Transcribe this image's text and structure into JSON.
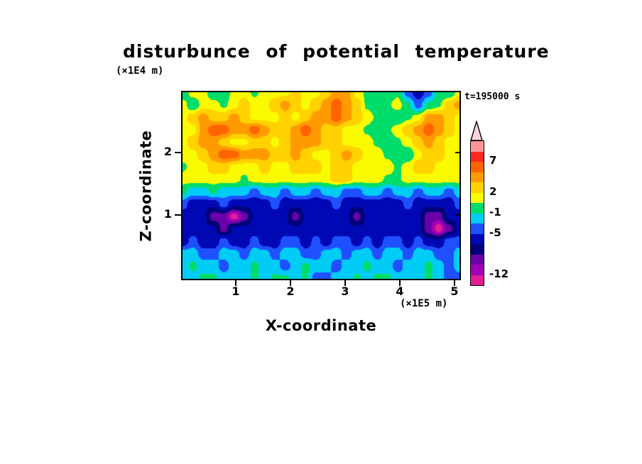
{
  "title": "disturbunce of potential temperature",
  "time_label": "t=195000 s",
  "axes": {
    "x_label": "X-coordinate",
    "x_unit": "(×1E5 m)",
    "x_ticks": [
      "1",
      "2",
      "3",
      "4",
      "5"
    ],
    "y_label": "Z-coordinate",
    "y_unit": "(×1E4 m)",
    "y_ticks": [
      "2",
      "1"
    ]
  },
  "colorbar": {
    "labels": [
      "7",
      "2",
      "-1",
      "-5",
      "-12"
    ],
    "arrow_color": "#ffd2dc",
    "outline_color": "#000000"
  },
  "chart_data": {
    "type": "heatmap",
    "title": "disturbunce of potential temperature",
    "xlabel": "X-coordinate (×1E5 m)",
    "ylabel": "Z-coordinate (×1E4 m)",
    "time": "t=195000 s",
    "x_range": [
      0,
      5.15
    ],
    "z_range": [
      0,
      3.0
    ],
    "x_tick_values": [
      1,
      2,
      3,
      4,
      5
    ],
    "z_tick_values": [
      2,
      1
    ],
    "legend_boundaries_labeled": [
      7,
      2,
      -1,
      -5,
      -12
    ],
    "grid_orientation": "rows listed top (z=3) to bottom (z=0)",
    "levels": [
      {
        "max": -12,
        "color": "#e11e96"
      },
      {
        "max": -10.5,
        "color": "#a000b4"
      },
      {
        "max": -9,
        "color": "#6a00a8"
      },
      {
        "max": -7,
        "color": "#000078"
      },
      {
        "max": -5,
        "color": "#0008b4"
      },
      {
        "max": -3,
        "color": "#1e50ff"
      },
      {
        "max": -1,
        "color": "#00ccf5"
      },
      {
        "max": 0.8,
        "color": "#00dc69"
      },
      {
        "max": 2,
        "color": "#fafa00"
      },
      {
        "max": 3.5,
        "color": "#ffd200"
      },
      {
        "max": 5,
        "color": "#ff9b00"
      },
      {
        "max": 7,
        "color": "#ff6400"
      },
      {
        "max": 9,
        "color": "#ff281e"
      },
      {
        "max": 99,
        "color": "#ff9696"
      }
    ],
    "values": [
      [
        -0.5,
        1.5,
        1.5,
        -0.5,
        -0.5,
        1.5,
        1.5,
        0.5,
        1.5,
        1.5,
        1.5,
        2.8,
        1.5,
        1.5,
        2.8,
        4.2,
        4.2,
        1.5,
        0.5,
        -0.5,
        -0.5,
        0.5,
        -4,
        -6.5,
        -4,
        -0.5,
        -0.5,
        1.5
      ],
      [
        1.5,
        -0.5,
        1.5,
        1.5,
        0.5,
        1.5,
        2.8,
        1.5,
        1.5,
        2.8,
        4.2,
        2.8,
        1.5,
        2.8,
        4.2,
        6,
        4.2,
        2.8,
        0.5,
        -0.5,
        0.5,
        1.5,
        -0.5,
        -4,
        -0.5,
        0.5,
        2.8,
        4.2
      ],
      [
        1.5,
        2.8,
        4.2,
        2.8,
        2.8,
        4.2,
        2.8,
        1.5,
        1.5,
        1.5,
        2.8,
        1.5,
        2.8,
        4.2,
        4.2,
        6,
        4.2,
        2.8,
        1.5,
        0.5,
        -0.5,
        -0.5,
        0.5,
        1.5,
        4.2,
        4.2,
        2.8,
        1.5
      ],
      [
        1.5,
        1.5,
        4.2,
        6,
        6,
        4.2,
        4.2,
        6,
        4.2,
        2.8,
        2.8,
        4.2,
        6,
        4.2,
        2.8,
        2.8,
        1.5,
        1.5,
        0.5,
        -0.5,
        0.5,
        1.5,
        2.8,
        4.2,
        6,
        4.2,
        2.8,
        1.5
      ],
      [
        1.5,
        2.8,
        4.2,
        4.2,
        2.8,
        1.5,
        1.5,
        2.8,
        2.8,
        1.5,
        2.8,
        4.2,
        4.2,
        4.2,
        2.8,
        2.8,
        1.5,
        1.5,
        1.5,
        0.5,
        -0.5,
        0.5,
        1.5,
        2.8,
        4.2,
        2.8,
        1.5,
        1.5
      ],
      [
        1.5,
        1.5,
        2.8,
        4.2,
        6,
        6,
        4.2,
        4.2,
        4.2,
        2.8,
        2.8,
        4.2,
        2.8,
        1.5,
        1.5,
        2.8,
        4.2,
        2.8,
        1.5,
        1.5,
        0.5,
        -0.5,
        -0.5,
        1.5,
        2.8,
        2.8,
        1.5,
        1.5
      ],
      [
        0.5,
        1.5,
        1.5,
        2.8,
        2.8,
        1.5,
        1.5,
        1.5,
        2.8,
        1.5,
        1.5,
        2.8,
        2.8,
        2.8,
        1.5,
        2.8,
        2.8,
        1.5,
        1.5,
        1.5,
        1.5,
        0.5,
        1.5,
        2.8,
        2.8,
        1.5,
        1.5,
        1.5
      ],
      [
        1.5,
        1.5,
        1.5,
        1.5,
        1.5,
        1.5,
        0.5,
        1.5,
        1.5,
        1.5,
        1.5,
        1.5,
        1.5,
        1.5,
        1.5,
        2.8,
        2.8,
        1.5,
        1.5,
        1.5,
        0.5,
        0.5,
        1.5,
        1.5,
        1.5,
        1.5,
        1.5,
        1.5
      ],
      [
        -0.5,
        -2,
        -2,
        -0.5,
        -2,
        -2,
        -2,
        -4,
        -2,
        -2,
        -4,
        -2,
        -2,
        -4,
        -2,
        -2,
        -4,
        -4,
        -2,
        -2,
        -4,
        -2,
        -2,
        -4,
        -2,
        -2,
        -4,
        -2
      ],
      [
        -4,
        -6.5,
        -6.5,
        -6.5,
        -4,
        -6.5,
        -6.5,
        -6.5,
        -6.5,
        -4,
        -6.5,
        -6.5,
        -6.5,
        -6.5,
        -6.5,
        -4,
        -6.5,
        -6.5,
        -6.5,
        -6.5,
        -6.5,
        -6.5,
        -4,
        -6.5,
        -6.5,
        -6.5,
        -6.5,
        -4
      ],
      [
        -6.5,
        -6.5,
        -6.5,
        -10,
        -10,
        -13,
        -10,
        -6.5,
        -6.5,
        -6.5,
        -6.5,
        -10,
        -6.5,
        -6.5,
        -6.5,
        -6.5,
        -6.5,
        -10,
        -6.5,
        -6.5,
        -6.5,
        -6.5,
        -6.5,
        -6.5,
        -10,
        -10,
        -6.5,
        -6.5
      ],
      [
        -6.5,
        -6.5,
        -6.5,
        -6.5,
        -10,
        -6.5,
        -6.5,
        -6.5,
        -6.5,
        -6.5,
        -6.5,
        -6.5,
        -6.5,
        -6.5,
        -6.5,
        -6.5,
        -6.5,
        -6.5,
        -6.5,
        -6.5,
        -6.5,
        -6.5,
        -6.5,
        -6.5,
        -10,
        -13,
        -10,
        -6.5
      ],
      [
        -6.5,
        -4,
        -6.5,
        -6.5,
        -4,
        -6.5,
        -6.5,
        -4,
        -6.5,
        -6.5,
        -4,
        -4,
        -6.5,
        -4,
        -6.5,
        -4,
        -4,
        -6.5,
        -4,
        -6.5,
        -4,
        -4,
        -6.5,
        -4,
        -6.5,
        -6.5,
        -4,
        -4
      ],
      [
        -2,
        -2,
        -4,
        -4,
        -2,
        -2,
        -4,
        -2,
        -2,
        -4,
        -2,
        -2,
        -4,
        -4,
        -2,
        -2,
        -4,
        -2,
        -2,
        -4,
        -2,
        -2,
        -4,
        -2,
        -2,
        -4,
        -4,
        -2
      ],
      [
        -2,
        -0.5,
        -2,
        -2,
        -4,
        -2,
        -2,
        -0.5,
        -2,
        -2,
        -4,
        -2,
        -0.5,
        -2,
        -2,
        -4,
        -2,
        -2,
        -0.5,
        -2,
        -2,
        -4,
        -2,
        -2,
        -0.5,
        -2,
        -4,
        -2
      ],
      [
        -2,
        -2,
        -0.5,
        -0.5,
        -2,
        -2,
        -2,
        -0.5,
        -2,
        -0.5,
        -0.5,
        -2,
        -0.5,
        -4,
        -4,
        -2,
        -2,
        -0.5,
        -2,
        -0.5,
        -0.5,
        -2,
        -2,
        -2,
        -0.5,
        -2,
        -4,
        -4
      ]
    ]
  }
}
